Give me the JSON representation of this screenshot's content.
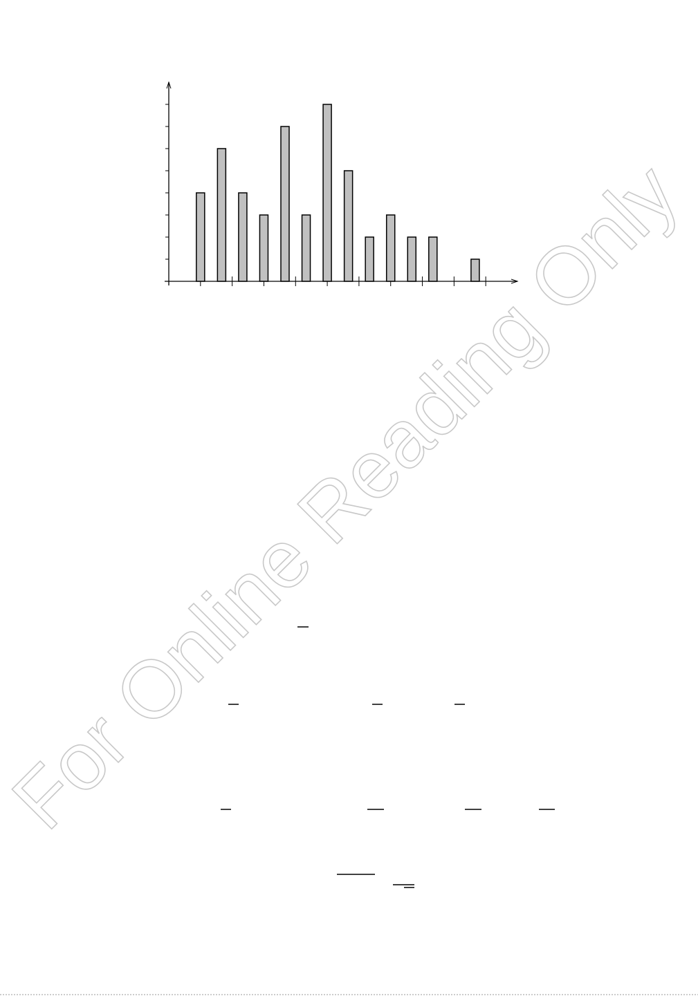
{
  "chart_data": {
    "type": "bar",
    "x": [
      3,
      5,
      7,
      9,
      11,
      13,
      15,
      17,
      19,
      21,
      23,
      25,
      29
    ],
    "values": [
      4,
      6,
      4,
      3,
      7,
      3,
      8,
      5,
      2,
      3,
      2,
      2,
      1
    ],
    "color": "#c0c0c0",
    "xlim": [
      0,
      33
    ],
    "xticks": [
      3,
      6,
      9,
      12,
      15,
      18,
      21,
      24,
      27,
      30
    ],
    "ylim": [
      0,
      9
    ],
    "yticks": [
      0,
      1,
      2,
      3,
      4,
      5,
      6,
      7,
      8
    ]
  },
  "watermark": "For Online Reading Only"
}
